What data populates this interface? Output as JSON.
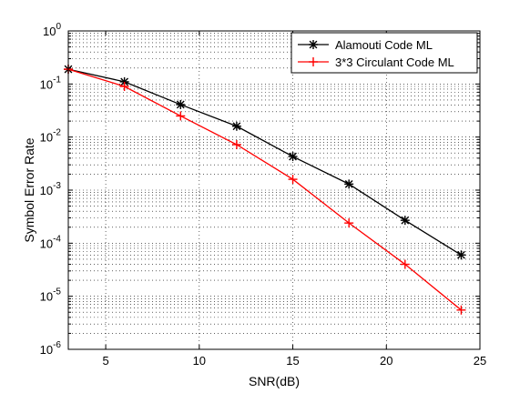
{
  "chart_data": {
    "type": "line",
    "title": "",
    "xlabel": "SNR(dB)",
    "ylabel": "Symbol Error Rate",
    "xlim": [
      3,
      25
    ],
    "ylim": [
      1e-06,
      1
    ],
    "yscale": "log",
    "grid": true,
    "legend_position": "top-right",
    "x_ticks": [
      5,
      10,
      15,
      20,
      25
    ],
    "y_ticks": [
      {
        "value": 1,
        "base": "10",
        "exp": "0"
      },
      {
        "value": 0.1,
        "base": "10",
        "exp": "-1"
      },
      {
        "value": 0.01,
        "base": "10",
        "exp": "-2"
      },
      {
        "value": 0.001,
        "base": "10",
        "exp": "-3"
      },
      {
        "value": 0.0001,
        "base": "10",
        "exp": "-4"
      },
      {
        "value": 1e-05,
        "base": "10",
        "exp": "-5"
      },
      {
        "value": 1e-06,
        "base": "10",
        "exp": "-6"
      }
    ],
    "x": [
      3,
      6,
      9,
      12,
      15,
      18,
      21,
      24
    ],
    "series": [
      {
        "name": "Alamouti Code ML",
        "color": "#000000",
        "marker": "asterisk",
        "values": [
          0.19,
          0.11,
          0.041,
          0.016,
          0.0043,
          0.0013,
          0.00027,
          6e-05
        ]
      },
      {
        "name": "3*3 Circulant Code ML",
        "color": "#ff0000",
        "marker": "plus",
        "values": [
          0.19,
          0.09,
          0.025,
          0.0072,
          0.0016,
          0.00024,
          4e-05,
          5.5e-06
        ]
      }
    ]
  }
}
